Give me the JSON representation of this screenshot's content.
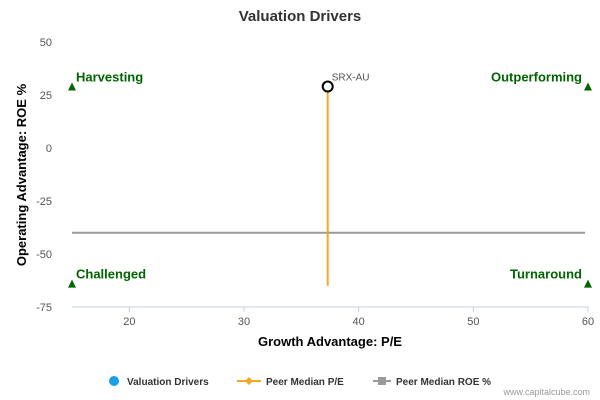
{
  "chart_data": {
    "type": "scatter",
    "title": "Valuation Drivers",
    "xlabel": "Growth Advantage: P/E",
    "ylabel": "Operating Advantage: ROE %",
    "xlim": [
      15,
      60
    ],
    "ylim": [
      -75,
      50
    ],
    "x_ticks": [
      20,
      30,
      40,
      50,
      60
    ],
    "y_ticks": [
      50,
      25,
      0,
      -25,
      -50,
      -75
    ],
    "grid": false,
    "legend_position": "bottom",
    "point": {
      "label": "SRX-AU",
      "x": 37.3,
      "y": 29
    },
    "peer_median_pe": 37.3,
    "peer_median_pe_line_y_range": [
      -65,
      29
    ],
    "peer_median_roe": -40,
    "quadrants": [
      {
        "name": "Harvesting",
        "x": 15,
        "y": 29
      },
      {
        "name": "Outperforming",
        "x": 60,
        "y": 29
      },
      {
        "name": "Challenged",
        "x": 15,
        "y": -64
      },
      {
        "name": "Turnaround",
        "x": 60,
        "y": -64
      }
    ],
    "legend": [
      {
        "name": "Valuation Drivers",
        "color": "#1a9ee5",
        "marker": "circle"
      },
      {
        "name": "Peer Median P/E",
        "color": "#f5a623",
        "marker": "diamond-line"
      },
      {
        "name": "Peer Median ROE %",
        "color": "#999999",
        "marker": "square-line"
      }
    ],
    "colors": {
      "point_stroke": "#000000",
      "pe_line": "#f5a623",
      "roe_line": "#999999",
      "quadrant_marker": "#006400",
      "axis": "#c0d0e0"
    }
  },
  "credit": "www.capitalcube.com"
}
